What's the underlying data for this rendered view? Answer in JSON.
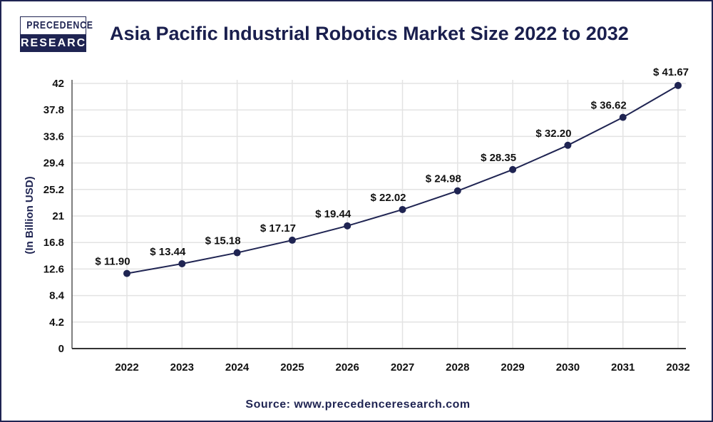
{
  "logo": {
    "line1": "PRECEDENCE",
    "line2": "RESEARCH"
  },
  "source": "Source: www.precedenceresearch.com",
  "colors": {
    "line": "#1f2452",
    "marker": "#1f2452",
    "grid": "#e3e3e3",
    "title": "#1a1f4e"
  },
  "chart_data": {
    "type": "line",
    "title": "Asia Pacific Industrial Robotics Market Size 2022 to 2032",
    "xlabel": "",
    "ylabel": "(In Billion USD)",
    "categories": [
      "2022",
      "2023",
      "2024",
      "2025",
      "2026",
      "2027",
      "2028",
      "2029",
      "2030",
      "2031",
      "2032"
    ],
    "values": [
      11.9,
      13.44,
      15.18,
      17.17,
      19.44,
      22.02,
      24.98,
      28.35,
      32.2,
      36.62,
      41.67
    ],
    "data_labels": [
      "$ 11.90",
      "$ 13.44",
      "$ 15.18",
      "$ 17.17",
      "$ 19.44",
      "$ 22.02",
      "$ 24.98",
      "$ 28.35",
      "$ 32.20",
      "$ 36.62",
      "$ 41.67"
    ],
    "yticks": [
      "0",
      "4.2",
      "8.4",
      "12.6",
      "16.8",
      "21",
      "25.2",
      "29.4",
      "33.6",
      "37.8",
      "42"
    ],
    "ylim": [
      0,
      42
    ],
    "grid": true,
    "legend": "none"
  }
}
